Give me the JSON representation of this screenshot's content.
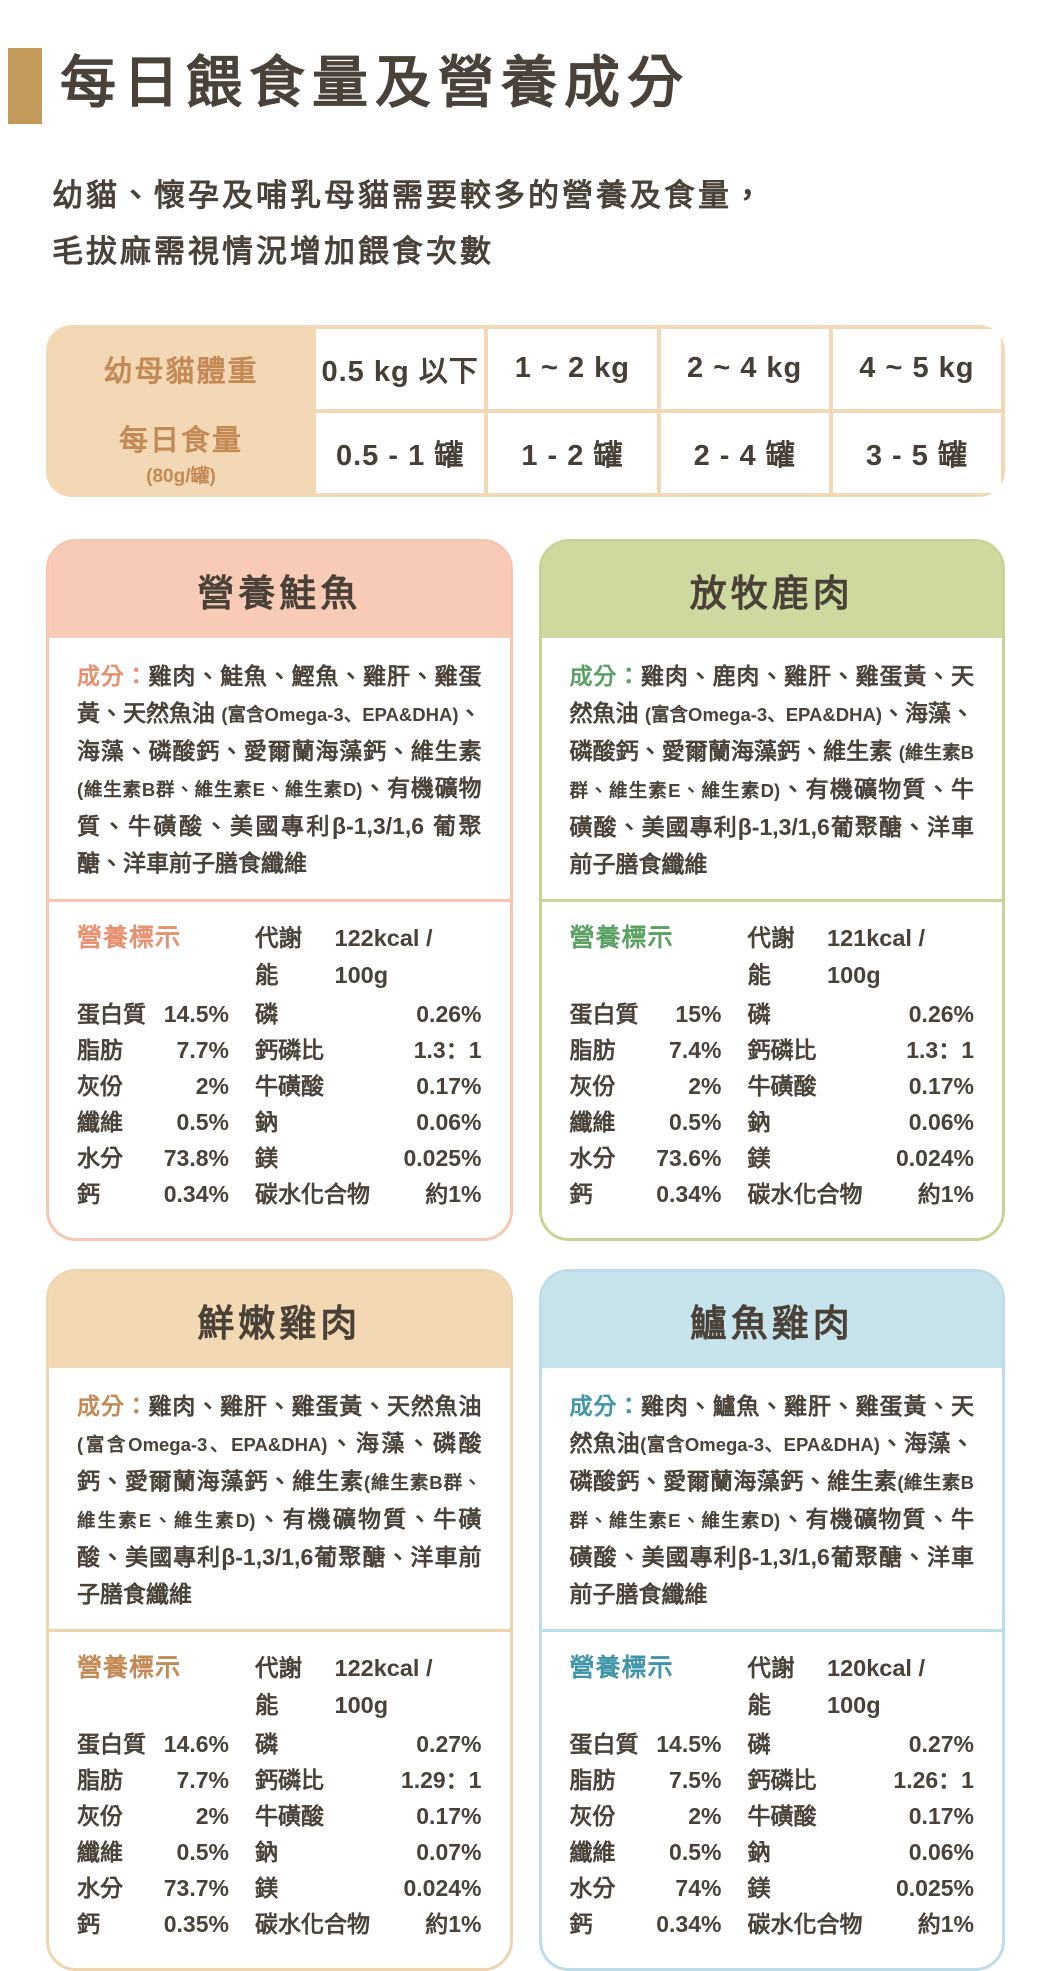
{
  "page": {
    "title": "每日餵食量及營養成分",
    "subtitle_line1": "幼貓、懷孕及哺乳母貓需要較多的營養及食量，",
    "subtitle_line2": "毛拔麻需視情況增加餵食次數",
    "accent_color": "#c49a5b",
    "text_color": "#4a4238"
  },
  "feeding_table": {
    "row1_label": "幼母貓體重",
    "row2_label": "每日食量",
    "row2_sublabel": "(80g/罐)",
    "weight_columns": [
      "0.5 kg 以下",
      "1 ~ 2 kg",
      "2 ~ 4 kg",
      "4 ~ 5 kg"
    ],
    "daily_amounts": [
      "0.5 - 1 罐",
      "1 - 2 罐",
      "2 - 4 罐",
      "3 - 5 罐"
    ],
    "colors": {
      "frame": "#f3d8b5",
      "label_text": "#c48a55"
    }
  },
  "labels": {
    "ingredients_label": "成分：",
    "nutrition_title": "營養標示",
    "energy_label": "代謝能"
  },
  "cards": [
    {
      "title": "營養鮭魚",
      "theme": {
        "header_bg": "#f8cbb6",
        "border": "#f6c6b0",
        "accent": "#e8906f"
      },
      "ingredients": [
        {
          "text": "雞肉、鮭魚、鰹魚、雞肝、雞蛋黃、天然魚油 ",
          "small": false
        },
        {
          "text": "(富含Omega-3、EPA&DHA)",
          "small": true
        },
        {
          "text": "、海藻、磷酸鈣、愛爾蘭海藻鈣、維生素",
          "small": false
        },
        {
          "text": "(維生素B群、維生素E、維生素D)",
          "small": true
        },
        {
          "text": "、有機礦物質、牛磺酸、美國專利β-1,3/1,6 葡聚醣、洋車前子膳食纖維",
          "small": false
        }
      ],
      "energy_value": "122kcal / 100g",
      "nutrients_left": [
        {
          "label": "蛋白質",
          "value": "14.5%"
        },
        {
          "label": "脂肪",
          "value": "7.7%"
        },
        {
          "label": "灰份",
          "value": "2%"
        },
        {
          "label": "纖維",
          "value": "0.5%"
        },
        {
          "label": "水分",
          "value": "73.8%"
        },
        {
          "label": "鈣",
          "value": "0.34%"
        }
      ],
      "nutrients_right": [
        {
          "label": "磷",
          "value": "0.26%"
        },
        {
          "label": "鈣磷比",
          "value": "1.3：1"
        },
        {
          "label": "牛磺酸",
          "value": "0.17%"
        },
        {
          "label": "鈉",
          "value": "0.06%"
        },
        {
          "label": "鎂",
          "value": "0.025%"
        },
        {
          "label": "碳水化合物",
          "value": "約1%"
        }
      ]
    },
    {
      "title": "放牧鹿肉",
      "theme": {
        "header_bg": "#cdd99e",
        "border": "#c7d496",
        "accent": "#5aa163"
      },
      "ingredients": [
        {
          "text": "雞肉、鹿肉、雞肝、雞蛋黃、天然魚油 ",
          "small": false
        },
        {
          "text": "(富含Omega-3、EPA&DHA)",
          "small": true
        },
        {
          "text": "、海藻、磷酸鈣、愛爾蘭海藻鈣、維生素 ",
          "small": false
        },
        {
          "text": "(維生素B群、維生素E、維生素D)",
          "small": true
        },
        {
          "text": "、有機礦物質、牛磺酸、美國專利β-1,3/1,6葡聚醣、洋車前子膳食纖維",
          "small": false
        }
      ],
      "energy_value": "121kcal / 100g",
      "nutrients_left": [
        {
          "label": "蛋白質",
          "value": "15%"
        },
        {
          "label": "脂肪",
          "value": "7.4%"
        },
        {
          "label": "灰份",
          "value": "2%"
        },
        {
          "label": "纖維",
          "value": "0.5%"
        },
        {
          "label": "水分",
          "value": "73.6%"
        },
        {
          "label": "鈣",
          "value": "0.34%"
        }
      ],
      "nutrients_right": [
        {
          "label": "磷",
          "value": "0.26%"
        },
        {
          "label": "鈣磷比",
          "value": "1.3：1"
        },
        {
          "label": "牛磺酸",
          "value": "0.17%"
        },
        {
          "label": "鈉",
          "value": "0.06%"
        },
        {
          "label": "鎂",
          "value": "0.024%"
        },
        {
          "label": "碳水化合物",
          "value": "約1%"
        }
      ]
    },
    {
      "title": "鮮嫩雞肉",
      "theme": {
        "header_bg": "#f3d9b3",
        "border": "#f0d4ad",
        "accent": "#c48a55"
      },
      "ingredients": [
        {
          "text": "雞肉、雞肝、雞蛋黃、天然魚油",
          "small": false
        },
        {
          "text": "(富含Omega-3、EPA&DHA)",
          "small": true
        },
        {
          "text": "、海藻、磷酸鈣、愛爾蘭海藻鈣、維生素",
          "small": false
        },
        {
          "text": "(維生素B群、維生素E、維生素D)",
          "small": true
        },
        {
          "text": "、有機礦物質、牛磺酸、美國專利β-1,3/1,6葡聚醣、洋車前子膳食纖維",
          "small": false
        }
      ],
      "energy_value": "122kcal / 100g",
      "nutrients_left": [
        {
          "label": "蛋白質",
          "value": "14.6%"
        },
        {
          "label": "脂肪",
          "value": "7.7%"
        },
        {
          "label": "灰份",
          "value": "2%"
        },
        {
          "label": "纖維",
          "value": "0.5%"
        },
        {
          "label": "水分",
          "value": "73.7%"
        },
        {
          "label": "鈣",
          "value": "0.35%"
        }
      ],
      "nutrients_right": [
        {
          "label": "磷",
          "value": "0.27%"
        },
        {
          "label": "鈣磷比",
          "value": "1.29：1"
        },
        {
          "label": "牛磺酸",
          "value": "0.17%"
        },
        {
          "label": "鈉",
          "value": "0.07%"
        },
        {
          "label": "鎂",
          "value": "0.024%"
        },
        {
          "label": "碳水化合物",
          "value": "約1%"
        }
      ]
    },
    {
      "title": "鱸魚雞肉",
      "theme": {
        "header_bg": "#c7e3ec",
        "border": "#bcdde8",
        "accent": "#4095aa"
      },
      "ingredients": [
        {
          "text": "雞肉、鱸魚、雞肝、雞蛋黃、天然魚油",
          "small": false
        },
        {
          "text": "(富含Omega-3、EPA&DHA)",
          "small": true
        },
        {
          "text": "、海藻、磷酸鈣、愛爾蘭海藻鈣、維生素",
          "small": false
        },
        {
          "text": "(維生素B群、維生素E、維生素D)",
          "small": true
        },
        {
          "text": "、有機礦物質、牛磺酸、美國專利β-1,3/1,6葡聚醣、洋車前子膳食纖維",
          "small": false
        }
      ],
      "energy_value": "120kcal / 100g",
      "nutrients_left": [
        {
          "label": "蛋白質",
          "value": "14.5%"
        },
        {
          "label": "脂肪",
          "value": "7.5%"
        },
        {
          "label": "灰份",
          "value": "2%"
        },
        {
          "label": "纖維",
          "value": "0.5%"
        },
        {
          "label": "水分",
          "value": "74%"
        },
        {
          "label": "鈣",
          "value": "0.34%"
        }
      ],
      "nutrients_right": [
        {
          "label": "磷",
          "value": "0.27%"
        },
        {
          "label": "鈣磷比",
          "value": "1.26：1"
        },
        {
          "label": "牛磺酸",
          "value": "0.17%"
        },
        {
          "label": "鈉",
          "value": "0.06%"
        },
        {
          "label": "鎂",
          "value": "0.025%"
        },
        {
          "label": "碳水化合物",
          "value": "約1%"
        }
      ]
    }
  ]
}
